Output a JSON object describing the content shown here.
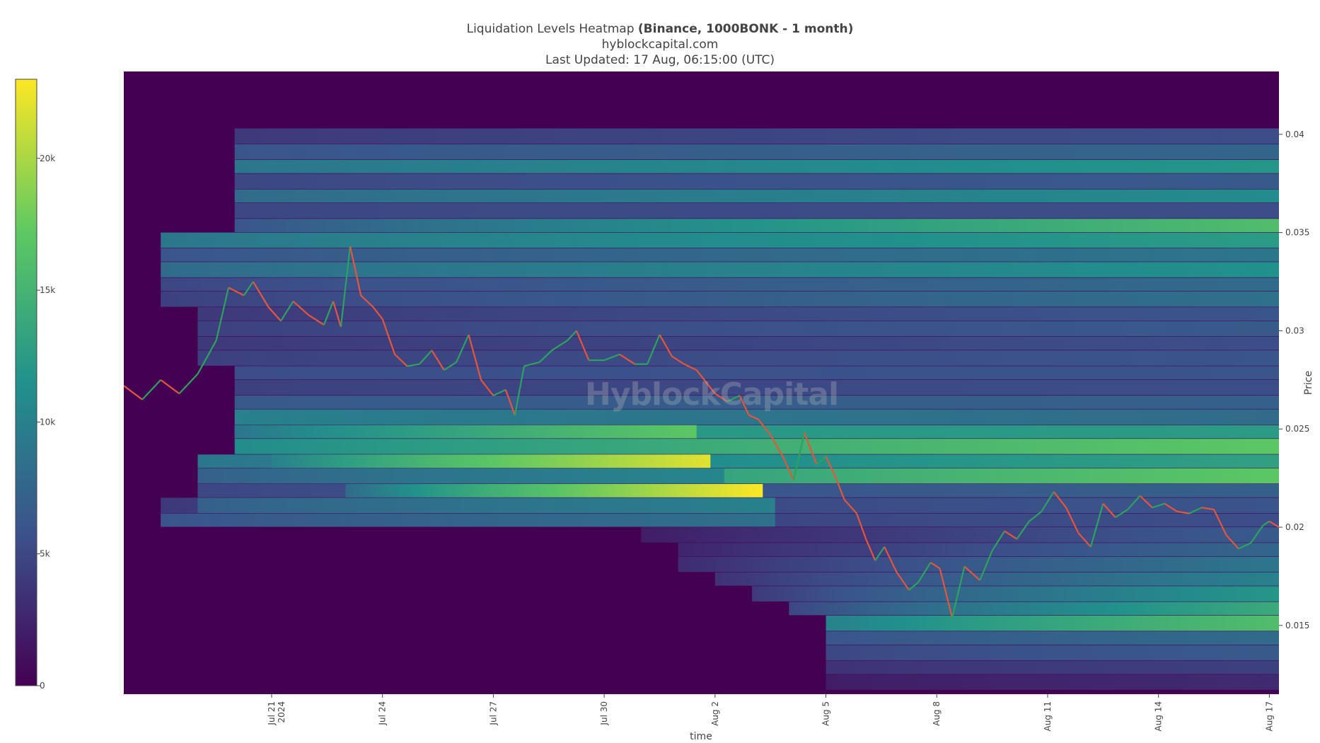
{
  "title": {
    "prefix": "Liquidation Levels Heatmap ",
    "bold": "(Binance, 1000BONK - 1 month)",
    "source": "hyblockcapital.com",
    "updated": "Last Updated: 17 Aug, 06:15:00 (UTC)"
  },
  "watermark": "HyblockCapital",
  "colors": {
    "background": "#440154",
    "price_up": "#2ca25f",
    "price_down": "#e8543a",
    "colorscale": [
      "#440154",
      "#3b528b",
      "#21918c",
      "#5ec962",
      "#fde725"
    ]
  },
  "chart_data": {
    "type": "heatmap",
    "xlabel": "time",
    "ylabel": "Price",
    "x_range": [
      "2024-07-17",
      "2024-08-17T06:15"
    ],
    "y_range": [
      0.0115,
      0.0432
    ],
    "x_ticks": [
      {
        "date": "2024-07-21",
        "label": "Jul 21",
        "label2": "2024"
      },
      {
        "date": "2024-07-24",
        "label": "Jul 24"
      },
      {
        "date": "2024-07-27",
        "label": "Jul 27"
      },
      {
        "date": "2024-07-30",
        "label": "Jul 30"
      },
      {
        "date": "2024-08-02",
        "label": "Aug 2"
      },
      {
        "date": "2024-08-05",
        "label": "Aug 5"
      },
      {
        "date": "2024-08-08",
        "label": "Aug 8"
      },
      {
        "date": "2024-08-11",
        "label": "Aug 11"
      },
      {
        "date": "2024-08-14",
        "label": "Aug 14"
      },
      {
        "date": "2024-08-17",
        "label": "Aug 17"
      }
    ],
    "y_ticks": [
      {
        "value": 0.015,
        "label": "0.015"
      },
      {
        "value": 0.02,
        "label": "0.02"
      },
      {
        "value": 0.025,
        "label": "0.025"
      },
      {
        "value": 0.03,
        "label": "0.03"
      },
      {
        "value": 0.035,
        "label": "0.035"
      },
      {
        "value": 0.04,
        "label": "0.04"
      }
    ],
    "colorbar": {
      "min": 0,
      "max": 23000,
      "ticks": [
        {
          "value": 0,
          "label": "0"
        },
        {
          "value": 5000,
          "label": "5k"
        },
        {
          "value": 10000,
          "label": "10k"
        },
        {
          "value": 15000,
          "label": "15k"
        },
        {
          "value": 20000,
          "label": "20k"
        }
      ]
    },
    "liquidation_bands": [
      {
        "price_low": 0.0395,
        "price_high": 0.0403,
        "start": "2024-07-20",
        "end": "2024-08-17T06:15",
        "value_start": 4000,
        "value_end": 5500
      },
      {
        "price_low": 0.0387,
        "price_high": 0.0395,
        "start": "2024-07-20",
        "end": "2024-08-17T06:15",
        "value_start": 6000,
        "value_end": 7500
      },
      {
        "price_low": 0.038,
        "price_high": 0.0387,
        "start": "2024-07-20",
        "end": "2024-08-17T06:15",
        "value_start": 9000,
        "value_end": 12000
      },
      {
        "price_low": 0.0372,
        "price_high": 0.038,
        "start": "2024-07-20",
        "end": "2024-08-17T06:15",
        "value_start": 5000,
        "value_end": 6500
      },
      {
        "price_low": 0.0365,
        "price_high": 0.0372,
        "start": "2024-07-20",
        "end": "2024-08-17T06:15",
        "value_start": 8000,
        "value_end": 11000
      },
      {
        "price_low": 0.0357,
        "price_high": 0.0365,
        "start": "2024-07-20",
        "end": "2024-08-17T06:15",
        "value_start": 5000,
        "value_end": 5500
      },
      {
        "price_low": 0.035,
        "price_high": 0.0357,
        "start": "2024-07-20",
        "end": "2024-08-17T06:15",
        "value_start": 6000,
        "value_end": 16000
      },
      {
        "price_low": 0.0342,
        "price_high": 0.035,
        "start": "2024-07-18",
        "end": "2024-08-17T06:15",
        "value_start": 9000,
        "value_end": 12500
      },
      {
        "price_low": 0.0335,
        "price_high": 0.0342,
        "start": "2024-07-18",
        "end": "2024-08-17T06:15",
        "value_start": 6000,
        "value_end": 9000
      },
      {
        "price_low": 0.0327,
        "price_high": 0.0335,
        "start": "2024-07-18",
        "end": "2024-08-17T06:15",
        "value_start": 8000,
        "value_end": 11500
      },
      {
        "price_low": 0.032,
        "price_high": 0.0327,
        "start": "2024-07-18",
        "end": "2024-08-17T06:15",
        "value_start": 5000,
        "value_end": 8000
      },
      {
        "price_low": 0.0312,
        "price_high": 0.032,
        "start": "2024-07-18",
        "end": "2024-08-17T06:15",
        "value_start": 4500,
        "value_end": 8500
      },
      {
        "price_low": 0.0305,
        "price_high": 0.0312,
        "start": "2024-07-19",
        "end": "2024-08-17T06:15",
        "value_start": 4000,
        "value_end": 6000
      },
      {
        "price_low": 0.0297,
        "price_high": 0.0305,
        "start": "2024-07-19",
        "end": "2024-08-17T06:15",
        "value_start": 4500,
        "value_end": 6500
      },
      {
        "price_low": 0.029,
        "price_high": 0.0297,
        "start": "2024-07-19",
        "end": "2024-08-17T06:15",
        "value_start": 4000,
        "value_end": 5500
      },
      {
        "price_low": 0.0282,
        "price_high": 0.029,
        "start": "2024-07-19",
        "end": "2024-08-17T06:15",
        "value_start": 4500,
        "value_end": 6000
      },
      {
        "price_low": 0.0275,
        "price_high": 0.0282,
        "start": "2024-07-20",
        "end": "2024-08-17T06:15",
        "value_start": 5500,
        "value_end": 6000
      },
      {
        "price_low": 0.0267,
        "price_high": 0.0275,
        "start": "2024-07-20",
        "end": "2024-08-17T06:15",
        "value_start": 4500,
        "value_end": 5500
      },
      {
        "price_low": 0.026,
        "price_high": 0.0267,
        "start": "2024-07-20",
        "end": "2024-08-17T06:15",
        "value_start": 6500,
        "value_end": 7000
      },
      {
        "price_low": 0.0252,
        "price_high": 0.026,
        "start": "2024-07-20",
        "end": "2024-08-17T06:15",
        "value_start": 10000,
        "value_end": 8000
      },
      {
        "price_low": 0.0245,
        "price_high": 0.0252,
        "start": "2024-07-20",
        "end": "2024-08-17T06:15",
        "value_start": 12000,
        "value_end": 12500
      },
      {
        "price_low": 0.0237,
        "price_high": 0.0245,
        "start": "2024-07-20",
        "end": "2024-08-17T06:15",
        "value_start": 11000,
        "value_end": 17000
      },
      {
        "price_low": 0.023,
        "price_high": 0.0237,
        "start": "2024-07-19",
        "end": "2024-08-17T06:15",
        "value_start": 9000,
        "value_end": 13000
      },
      {
        "price_low": 0.0222,
        "price_high": 0.023,
        "start": "2024-07-19",
        "end": "2024-08-17T06:15",
        "value_start": 9000,
        "value_end": 17000
      },
      {
        "price_low": 0.0215,
        "price_high": 0.0222,
        "start": "2024-07-19",
        "end": "2024-08-17T06:15",
        "value_start": 5000,
        "value_end": 7000
      },
      {
        "price_low": 0.0207,
        "price_high": 0.0215,
        "start": "2024-07-18",
        "end": "2024-08-17T06:15",
        "value_start": 4000,
        "value_end": 6000
      },
      {
        "price_low": 0.02,
        "price_high": 0.0207,
        "start": "2024-07-18",
        "end": "2024-08-17T06:15",
        "value_start": 4000,
        "value_end": 5500
      },
      {
        "price_low": 0.0192,
        "price_high": 0.02,
        "start": "2024-07-31",
        "end": "2024-08-17T06:15",
        "value_start": 2000,
        "value_end": 6500
      },
      {
        "price_low": 0.0185,
        "price_high": 0.0192,
        "start": "2024-08-01",
        "end": "2024-08-17T06:15",
        "value_start": 2500,
        "value_end": 7500
      },
      {
        "price_low": 0.0177,
        "price_high": 0.0185,
        "start": "2024-08-01",
        "end": "2024-08-17T06:15",
        "value_start": 3000,
        "value_end": 9000
      },
      {
        "price_low": 0.017,
        "price_high": 0.0177,
        "start": "2024-08-02",
        "end": "2024-08-17T06:15",
        "value_start": 3500,
        "value_end": 10000
      },
      {
        "price_low": 0.0162,
        "price_high": 0.017,
        "start": "2024-08-03",
        "end": "2024-08-17T06:15",
        "value_start": 4000,
        "value_end": 12000
      },
      {
        "price_low": 0.0155,
        "price_high": 0.0162,
        "start": "2024-08-04",
        "end": "2024-08-17T06:15",
        "value_start": 5000,
        "value_end": 14000
      },
      {
        "price_low": 0.0147,
        "price_high": 0.0155,
        "start": "2024-08-05",
        "end": "2024-08-17T06:15",
        "value_start": 10000,
        "value_end": 16000
      },
      {
        "price_low": 0.014,
        "price_high": 0.0147,
        "start": "2024-08-05",
        "end": "2024-08-17T06:15",
        "value_start": 6000,
        "value_end": 8000
      },
      {
        "price_low": 0.0132,
        "price_high": 0.014,
        "start": "2024-08-05",
        "end": "2024-08-17T06:15",
        "value_start": 5000,
        "value_end": 6500
      },
      {
        "price_low": 0.0125,
        "price_high": 0.0132,
        "start": "2024-08-05",
        "end": "2024-08-17T06:15",
        "value_start": 3500,
        "value_end": 4500
      },
      {
        "price_low": 0.0117,
        "price_high": 0.0125,
        "start": "2024-08-05",
        "end": "2024-08-17T06:15",
        "value_start": 2000,
        "value_end": 3000
      }
    ],
    "liquidated_bands": [
      {
        "price_low": 0.0245,
        "price_high": 0.0252,
        "start": "2024-07-20",
        "end": "2024-08-01T12:00",
        "value_start": 9000,
        "value_end": 17000
      },
      {
        "price_low": 0.023,
        "price_high": 0.0237,
        "start": "2024-07-21",
        "end": "2024-08-01T21:00",
        "value_start": 10000,
        "value_end": 22000
      },
      {
        "price_low": 0.0222,
        "price_high": 0.023,
        "start": "2024-07-19",
        "end": "2024-08-02T06:00",
        "value_start": 7000,
        "value_end": 10500
      },
      {
        "price_low": 0.0215,
        "price_high": 0.0222,
        "start": "2024-07-23",
        "end": "2024-08-03T07:00",
        "value_start": 8000,
        "value_end": 23000
      },
      {
        "price_low": 0.0207,
        "price_high": 0.0215,
        "start": "2024-07-19",
        "end": "2024-08-03T15:00",
        "value_start": 7000,
        "value_end": 10000
      },
      {
        "price_low": 0.02,
        "price_high": 0.0207,
        "start": "2024-07-18",
        "end": "2024-08-03T15:00",
        "value_start": 6000,
        "value_end": 8500
      }
    ],
    "price_series": [
      [
        "2024-07-17T00:00",
        0.0272
      ],
      [
        "2024-07-17T12:00",
        0.0265
      ],
      [
        "2024-07-18T00:00",
        0.0275
      ],
      [
        "2024-07-18T12:00",
        0.0268
      ],
      [
        "2024-07-19T00:00",
        0.0278
      ],
      [
        "2024-07-19T12:00",
        0.0295
      ],
      [
        "2024-07-19T20:00",
        0.0322
      ],
      [
        "2024-07-20T06:00",
        0.0318
      ],
      [
        "2024-07-20T12:00",
        0.0325
      ],
      [
        "2024-07-20T22:00",
        0.0312
      ],
      [
        "2024-07-21T06:00",
        0.0305
      ],
      [
        "2024-07-21T14:00",
        0.0315
      ],
      [
        "2024-07-22T00:00",
        0.0308
      ],
      [
        "2024-07-22T10:00",
        0.0303
      ],
      [
        "2024-07-22T16:00",
        0.0315
      ],
      [
        "2024-07-22T21:00",
        0.0302
      ],
      [
        "2024-07-23T03:00",
        0.0343
      ],
      [
        "2024-07-23T10:00",
        0.0318
      ],
      [
        "2024-07-23T18:00",
        0.0312
      ],
      [
        "2024-07-24T00:00",
        0.0306
      ],
      [
        "2024-07-24T08:00",
        0.0288
      ],
      [
        "2024-07-24T16:00",
        0.0282
      ],
      [
        "2024-07-25T00:00",
        0.0283
      ],
      [
        "2024-07-25T08:00",
        0.029
      ],
      [
        "2024-07-25T16:00",
        0.028
      ],
      [
        "2024-07-26T00:00",
        0.0284
      ],
      [
        "2024-07-26T08:00",
        0.0298
      ],
      [
        "2024-07-26T16:00",
        0.0275
      ],
      [
        "2024-07-27T00:00",
        0.0267
      ],
      [
        "2024-07-27T08:00",
        0.027
      ],
      [
        "2024-07-27T14:00",
        0.0257
      ],
      [
        "2024-07-27T20:00",
        0.0282
      ],
      [
        "2024-07-28T06:00",
        0.0284
      ],
      [
        "2024-07-28T14:00",
        0.029
      ],
      [
        "2024-07-29T00:00",
        0.0295
      ],
      [
        "2024-07-29T06:00",
        0.03
      ],
      [
        "2024-07-29T14:00",
        0.0285
      ],
      [
        "2024-07-30T00:00",
        0.0285
      ],
      [
        "2024-07-30T10:00",
        0.0288
      ],
      [
        "2024-07-30T20:00",
        0.0283
      ],
      [
        "2024-07-31T04:00",
        0.0283
      ],
      [
        "2024-07-31T12:00",
        0.0298
      ],
      [
        "2024-07-31T20:00",
        0.0287
      ],
      [
        "2024-08-01T04:00",
        0.0283
      ],
      [
        "2024-08-01T12:00",
        0.028
      ],
      [
        "2024-08-02T00:00",
        0.0268
      ],
      [
        "2024-08-02T08:00",
        0.0264
      ],
      [
        "2024-08-02T16:00",
        0.0267
      ],
      [
        "2024-08-02T22:00",
        0.0257
      ],
      [
        "2024-08-03T04:00",
        0.0255
      ],
      [
        "2024-08-03T12:00",
        0.0247
      ],
      [
        "2024-08-03T20:00",
        0.0236
      ],
      [
        "2024-08-04T03:00",
        0.0224
      ],
      [
        "2024-08-04T10:00",
        0.0248
      ],
      [
        "2024-08-04T18:00",
        0.0232
      ],
      [
        "2024-08-05T00:00",
        0.0236
      ],
      [
        "2024-08-05T06:00",
        0.0226
      ],
      [
        "2024-08-05T12:00",
        0.0214
      ],
      [
        "2024-08-05T20:00",
        0.0207
      ],
      [
        "2024-08-06T02:00",
        0.0194
      ],
      [
        "2024-08-06T08:00",
        0.0183
      ],
      [
        "2024-08-06T14:00",
        0.019
      ],
      [
        "2024-08-06T22:00",
        0.0177
      ],
      [
        "2024-08-07T06:00",
        0.0168
      ],
      [
        "2024-08-07T12:00",
        0.0172
      ],
      [
        "2024-08-07T20:00",
        0.0182
      ],
      [
        "2024-08-08T02:00",
        0.0179
      ],
      [
        "2024-08-08T10:00",
        0.0154
      ],
      [
        "2024-08-08T18:00",
        0.018
      ],
      [
        "2024-08-09T04:00",
        0.0173
      ],
      [
        "2024-08-09T12:00",
        0.0188
      ],
      [
        "2024-08-09T20:00",
        0.0198
      ],
      [
        "2024-08-10T04:00",
        0.0194
      ],
      [
        "2024-08-10T12:00",
        0.0203
      ],
      [
        "2024-08-10T20:00",
        0.0208
      ],
      [
        "2024-08-11T04:00",
        0.0218
      ],
      [
        "2024-08-11T12:00",
        0.021
      ],
      [
        "2024-08-11T20:00",
        0.0197
      ],
      [
        "2024-08-12T04:00",
        0.019
      ],
      [
        "2024-08-12T12:00",
        0.0212
      ],
      [
        "2024-08-12T20:00",
        0.0205
      ],
      [
        "2024-08-13T04:00",
        0.0209
      ],
      [
        "2024-08-13T12:00",
        0.0216
      ],
      [
        "2024-08-13T20:00",
        0.021
      ],
      [
        "2024-08-14T04:00",
        0.0212
      ],
      [
        "2024-08-14T12:00",
        0.0208
      ],
      [
        "2024-08-14T20:00",
        0.0207
      ],
      [
        "2024-08-15T04:00",
        0.021
      ],
      [
        "2024-08-15T12:00",
        0.0209
      ],
      [
        "2024-08-15T20:00",
        0.0196
      ],
      [
        "2024-08-16T04:00",
        0.0189
      ],
      [
        "2024-08-16T12:00",
        0.0192
      ],
      [
        "2024-08-16T20:00",
        0.0201
      ],
      [
        "2024-08-17T00:00",
        0.0203
      ],
      [
        "2024-08-17T06:15",
        0.02
      ]
    ]
  }
}
